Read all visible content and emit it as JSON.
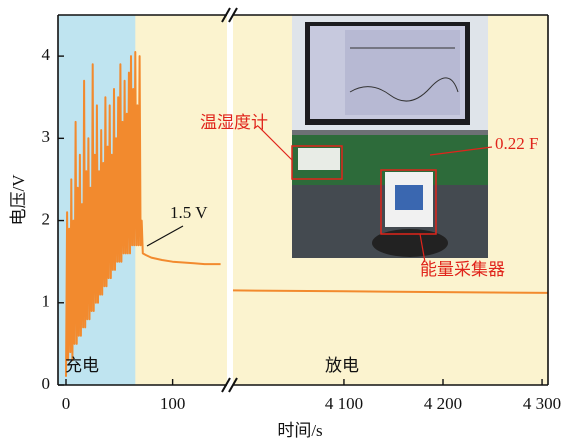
{
  "chart_data": [
    {
      "type": "line",
      "ylabel": "电压/V",
      "xlabel": "时间/s",
      "ylim": [
        0,
        4.5
      ],
      "yticks": [
        0,
        1,
        2,
        3,
        4
      ],
      "xlim": [
        -7.5,
        151
      ],
      "xticks": [
        0,
        100
      ],
      "color": "#f28a2e",
      "shaded": [
        -7.5,
        65
      ],
      "shade_color": "#bfe4f0",
      "annotations": [
        "1.5 V",
        "充电",
        "放电",
        "温湿度计",
        "0.22 F",
        "能量采集器"
      ],
      "x": [
        0,
        1,
        2,
        3,
        4,
        5,
        6,
        7,
        8,
        9,
        10,
        11,
        12,
        13,
        14,
        15,
        16,
        17,
        18,
        19,
        20,
        21,
        22,
        23,
        24,
        25,
        26,
        27,
        28,
        29,
        30,
        31,
        32,
        33,
        34,
        35,
        36,
        37,
        38,
        39,
        40,
        41,
        42,
        43,
        44,
        45,
        46,
        47,
        48,
        49,
        50,
        51,
        52,
        53,
        54,
        55,
        56,
        57,
        58,
        59,
        60,
        61,
        62,
        63,
        64,
        65,
        66,
        67,
        68,
        69,
        70,
        71,
        72,
        75,
        80,
        90,
        100,
        110,
        120,
        130,
        145
      ],
      "values": [
        0.1,
        2.1,
        0.3,
        1.9,
        0.4,
        2.5,
        0.3,
        2.0,
        0.5,
        3.2,
        0.5,
        2.4,
        0.6,
        2.8,
        0.6,
        2.2,
        0.7,
        3.7,
        0.7,
        2.6,
        0.8,
        3.0,
        0.8,
        2.4,
        0.9,
        3.9,
        0.9,
        2.8,
        1.0,
        3.4,
        1.0,
        2.6,
        1.1,
        3.1,
        1.1,
        2.7,
        1.2,
        3.5,
        1.2,
        2.9,
        1.3,
        3.4,
        1.3,
        2.8,
        1.4,
        3.6,
        1.4,
        3.0,
        1.5,
        3.5,
        1.5,
        3.9,
        1.5,
        3.2,
        1.6,
        3.7,
        1.6,
        3.3,
        1.6,
        3.8,
        1.6,
        4.0,
        1.7,
        3.6,
        1.7,
        4.05,
        1.7,
        3.4,
        1.7,
        4.0,
        1.7,
        2.0,
        1.6,
        1.58,
        1.55,
        1.52,
        1.5,
        1.49,
        1.48,
        1.47,
        1.47
      ]
    },
    {
      "type": "line",
      "ylim": [
        0,
        4.5
      ],
      "xlim": [
        3988,
        4306
      ],
      "color": "#f28a2e",
      "xticks": [
        {
          "value": 4100,
          "label": "4 100"
        },
        {
          "value": 4200,
          "label": "4 200"
        },
        {
          "value": 4300,
          "label": "4 300"
        }
      ],
      "x": [
        3988,
        4100,
        4200,
        4306
      ],
      "values": [
        1.15,
        1.14,
        1.13,
        1.12
      ]
    }
  ]
}
